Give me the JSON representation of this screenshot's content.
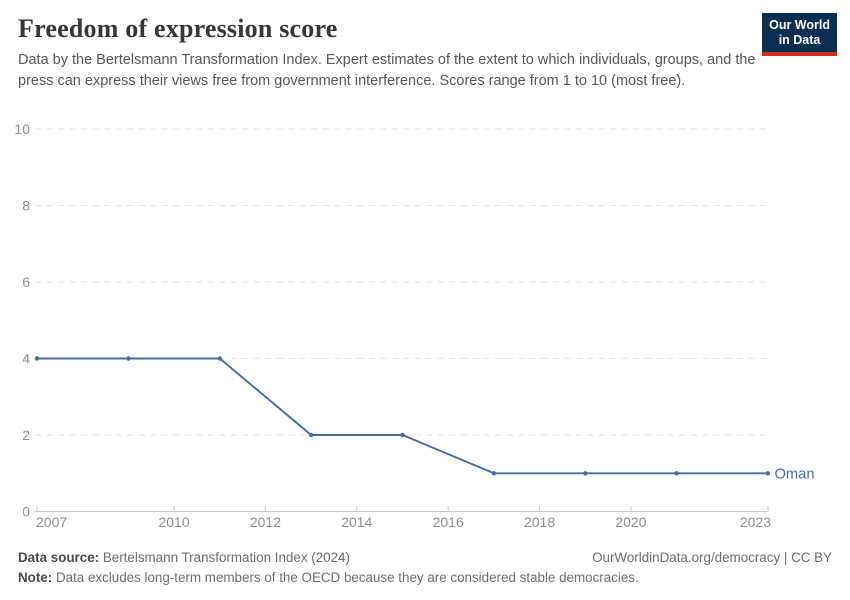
{
  "header": {
    "title": "Freedom of expression score",
    "subtitle": "Data by the Bertelsmann Transformation Index. Expert estimates of the extent to which individuals, groups, and the press can express their views free from government interference. Scores range from 1 to 10 (most free).",
    "logo": {
      "line1": "Our World",
      "line2": "in Data",
      "bg_color": "#0d2e53",
      "stripe_color": "#cf2d24"
    }
  },
  "chart_data": {
    "type": "line",
    "title": "Freedom of expression score",
    "x": [
      2007,
      2009,
      2011,
      2013,
      2015,
      2017,
      2019,
      2021,
      2023
    ],
    "series": [
      {
        "name": "Oman",
        "values": [
          4,
          4,
          4,
          2,
          2,
          1,
          1,
          1,
          1
        ]
      }
    ],
    "end_label": "Oman",
    "xlim": [
      2007,
      2023
    ],
    "ylim": [
      0,
      10
    ],
    "xticks": [
      2007,
      2010,
      2012,
      2014,
      2016,
      2018,
      2020,
      2023
    ],
    "yticks": [
      0,
      2,
      4,
      6,
      8,
      10
    ],
    "xlabel": "",
    "ylabel": "",
    "grid": "horizontal-dashed",
    "legend": "line-end-label"
  },
  "colors": {
    "series": "#4C6A9C",
    "grid": "#e3e3e3",
    "axis": "#c9c9c9",
    "tick_label": "#8f8f8f"
  },
  "footer": {
    "source_label": "Data source:",
    "source_value": " Bertelsmann Transformation Index (2024)",
    "credit": "OurWorldinData.org/democracy | CC BY",
    "note_label": "Note:",
    "note_value": " Data excludes long-term members of the OECD because they are considered stable democracies."
  }
}
